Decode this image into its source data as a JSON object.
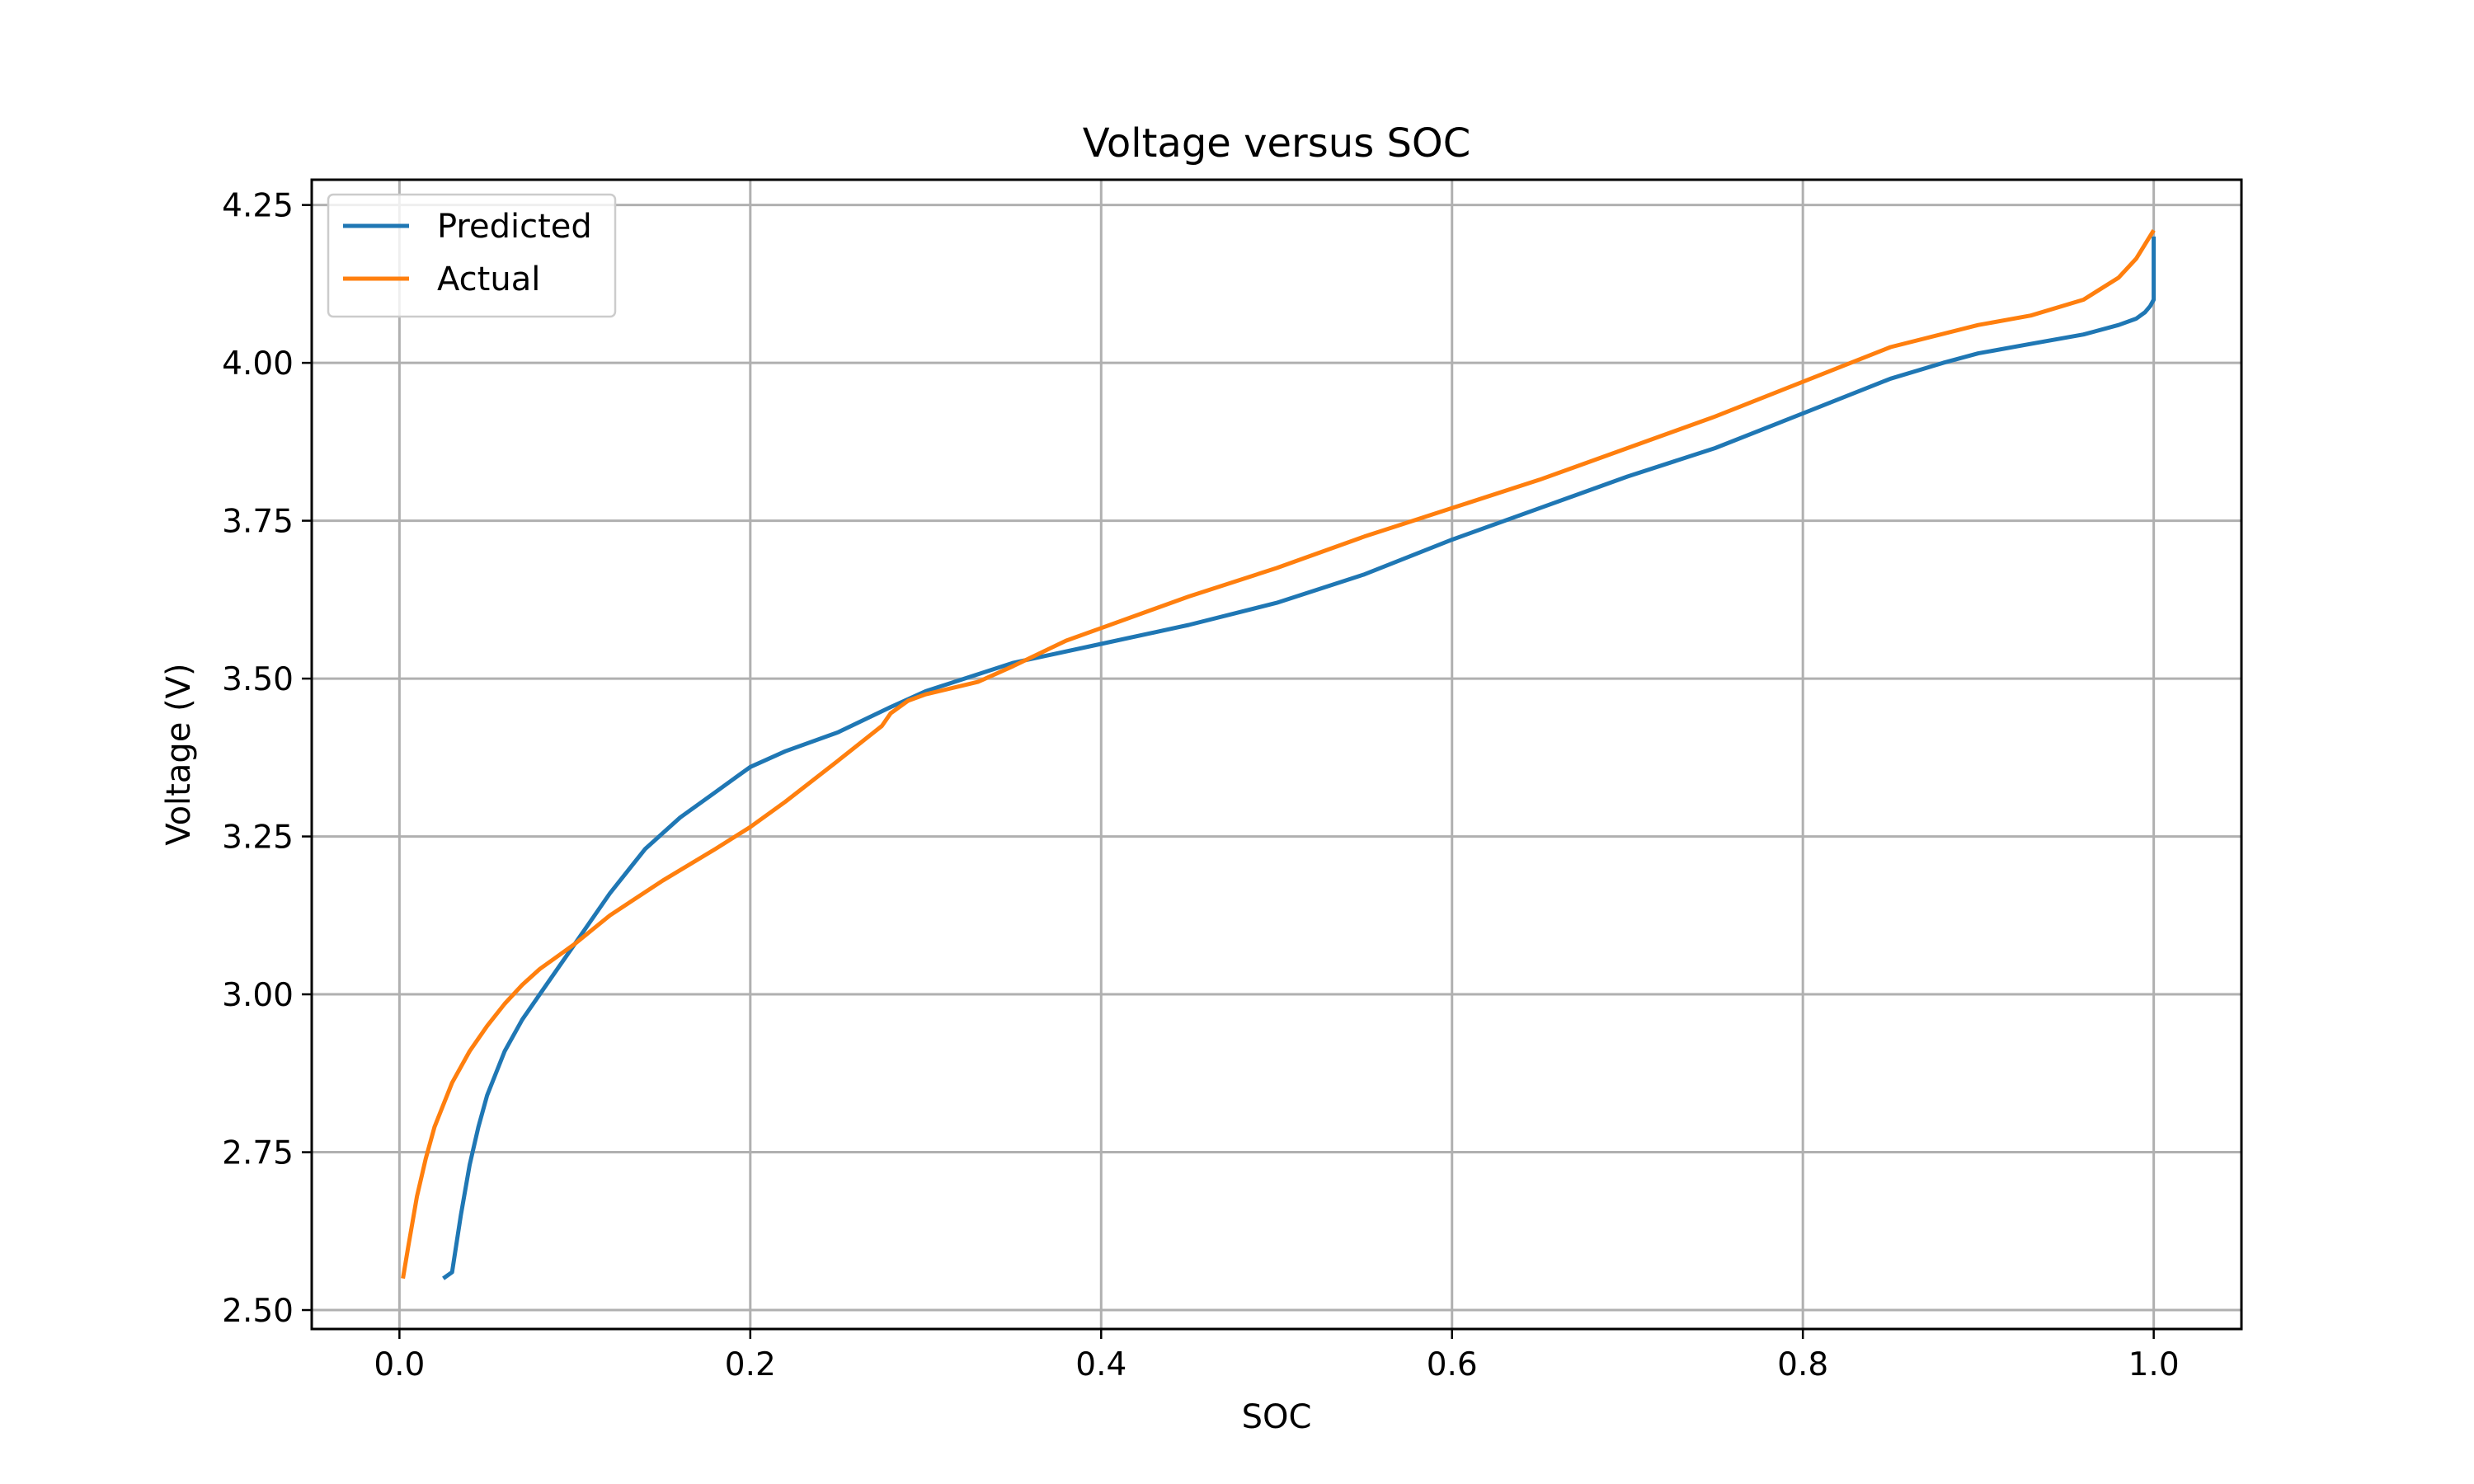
{
  "chart_data": {
    "type": "line",
    "title": "Voltage versus SOC",
    "xlabel": "SOC",
    "ylabel": "Voltage (V)",
    "xlim": [
      -0.05,
      1.05
    ],
    "ylim": [
      2.47,
      4.29
    ],
    "xticks": [
      0.0,
      0.2,
      0.4,
      0.6,
      0.8,
      1.0
    ],
    "xtick_labels": [
      "0.0",
      "0.2",
      "0.4",
      "0.6",
      "0.8",
      "1.0"
    ],
    "yticks": [
      2.5,
      2.75,
      3.0,
      3.25,
      3.5,
      3.75,
      4.0,
      4.25
    ],
    "ytick_labels": [
      "2.50",
      "2.75",
      "3.00",
      "3.25",
      "3.50",
      "3.75",
      "4.00",
      "4.25"
    ],
    "grid": true,
    "legend_position": "top-left",
    "series": [
      {
        "name": "Predicted",
        "color": "#1f77b4",
        "x": [
          0.025,
          0.03,
          0.035,
          0.04,
          0.045,
          0.05,
          0.06,
          0.07,
          0.08,
          0.09,
          0.1,
          0.12,
          0.14,
          0.16,
          0.18,
          0.19,
          0.2,
          0.22,
          0.25,
          0.28,
          0.3,
          0.35,
          0.4,
          0.45,
          0.5,
          0.55,
          0.6,
          0.65,
          0.7,
          0.75,
          0.8,
          0.85,
          0.88,
          0.9,
          0.93,
          0.96,
          0.98,
          0.99,
          0.995,
          0.998,
          1.0,
          1.0
        ],
        "y": [
          2.55,
          2.56,
          2.65,
          2.73,
          2.79,
          2.84,
          2.91,
          2.96,
          3.0,
          3.04,
          3.08,
          3.16,
          3.23,
          3.28,
          3.32,
          3.34,
          3.36,
          3.385,
          3.415,
          3.455,
          3.48,
          3.525,
          3.555,
          3.585,
          3.62,
          3.665,
          3.72,
          3.77,
          3.82,
          3.865,
          3.92,
          3.975,
          4.0,
          4.015,
          4.03,
          4.045,
          4.06,
          4.07,
          4.08,
          4.09,
          4.1,
          4.2
        ]
      },
      {
        "name": "Actual",
        "color": "#ff7f0e",
        "x": [
          0.002,
          0.005,
          0.01,
          0.015,
          0.02,
          0.03,
          0.04,
          0.05,
          0.06,
          0.07,
          0.08,
          0.09,
          0.1,
          0.12,
          0.15,
          0.18,
          0.2,
          0.22,
          0.25,
          0.275,
          0.28,
          0.29,
          0.3,
          0.33,
          0.35,
          0.38,
          0.4,
          0.45,
          0.5,
          0.55,
          0.6,
          0.65,
          0.7,
          0.75,
          0.8,
          0.85,
          0.9,
          0.93,
          0.96,
          0.98,
          0.99,
          1.0
        ],
        "y": [
          2.55,
          2.6,
          2.68,
          2.74,
          2.79,
          2.86,
          2.91,
          2.95,
          2.985,
          3.015,
          3.04,
          3.06,
          3.08,
          3.125,
          3.18,
          3.23,
          3.265,
          3.305,
          3.37,
          3.425,
          3.445,
          3.465,
          3.475,
          3.495,
          3.52,
          3.56,
          3.58,
          3.63,
          3.675,
          3.725,
          3.77,
          3.815,
          3.865,
          3.915,
          3.97,
          4.025,
          4.06,
          4.075,
          4.1,
          4.135,
          4.165,
          4.21
        ]
      }
    ]
  }
}
